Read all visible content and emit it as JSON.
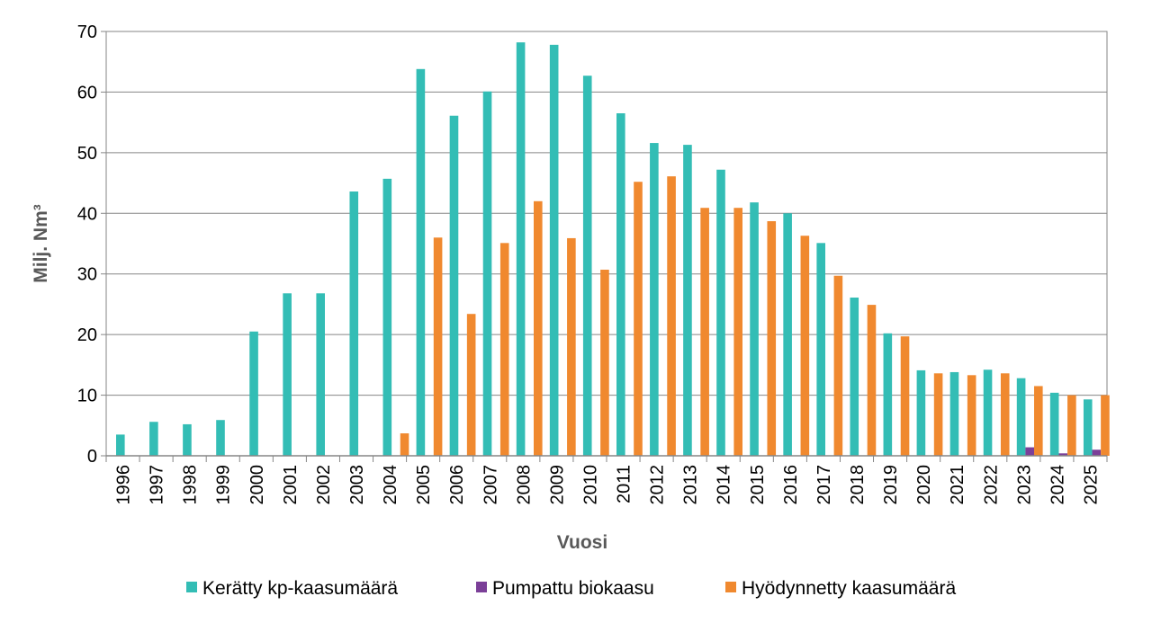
{
  "chart_data": {
    "type": "bar",
    "title": "",
    "xlabel": "Vuosi",
    "ylabel": "Milj. Nm³",
    "ylim": [
      0,
      70
    ],
    "yticks": [
      0,
      10,
      20,
      30,
      40,
      50,
      60,
      70
    ],
    "grid": true,
    "legend_position": "bottom",
    "categories": [
      "1996",
      "1997",
      "1998",
      "1999",
      "2000",
      "2001",
      "2002",
      "2003",
      "2004",
      "2005",
      "2006",
      "2007",
      "2008",
      "2009",
      "2010",
      "2011",
      "2012",
      "2013",
      "2014",
      "2015",
      "2016",
      "2017",
      "2018",
      "2019",
      "2020",
      "2021",
      "2022",
      "2023",
      "2024",
      "2025"
    ],
    "series": [
      {
        "name": "Kerätty kp-kaasumäärä",
        "color": "#33bdb5",
        "values": [
          3.5,
          5.6,
          5.2,
          5.9,
          20.5,
          26.8,
          26.8,
          43.6,
          45.7,
          63.8,
          56.1,
          60.1,
          68.2,
          67.8,
          62.7,
          56.5,
          51.6,
          51.3,
          47.2,
          41.8,
          40.0,
          35.1,
          26.1,
          20.2,
          14.1,
          13.8,
          14.2,
          12.8,
          10.4,
          9.3
        ]
      },
      {
        "name": "Pumpattu biokaasu",
        "color": "#7b3f98",
        "values": [
          0,
          0,
          0,
          0,
          0,
          0,
          0,
          0,
          0,
          0,
          0,
          0,
          0,
          0,
          0,
          0,
          0,
          0,
          0,
          0,
          0,
          0,
          0,
          0,
          0,
          0,
          0,
          1.4,
          0.4,
          1.0
        ]
      },
      {
        "name": "Hyödynnetty kaasumäärä",
        "color": "#f0892f",
        "values": [
          0,
          0,
          0,
          0,
          0,
          0,
          0,
          0,
          3.7,
          36.0,
          23.4,
          35.1,
          42.0,
          35.9,
          30.7,
          45.2,
          46.1,
          40.9,
          40.9,
          38.7,
          36.3,
          29.7,
          24.9,
          19.7,
          13.6,
          13.3,
          13.6,
          11.5,
          10.0,
          10.0
        ]
      }
    ]
  }
}
